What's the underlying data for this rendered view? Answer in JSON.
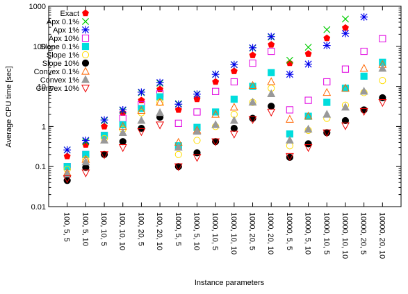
{
  "chart_data": {
    "type": "scatter",
    "xlabel": "Instance parameters",
    "ylabel": "Average CPU time [sec]",
    "y_scale": "log",
    "ylim": [
      0.01,
      1000
    ],
    "y_ticks": [
      "0.01",
      "0.1",
      "1",
      "10",
      "100",
      "1000"
    ],
    "grid": false,
    "legend_position": "top-left",
    "categories": [
      "100, 5, 5",
      "100, 5, 10",
      "100, 10, 5",
      "100, 10, 10",
      "100, 20, 5",
      "100, 20, 10",
      "1000, 5, 5",
      "1000, 5, 10",
      "1000, 10, 5",
      "1000, 10, 10",
      "1000, 20, 5",
      "1000, 20, 10",
      "10000, 5, 5",
      "10000, 5, 10",
      "10000, 10, 5",
      "10000, 10, 10",
      "10000, 20, 5",
      "10000, 20, 10"
    ],
    "series": [
      {
        "name": "Exact",
        "marker": "pentagon",
        "color": "#ff0000",
        "values": [
          0.18,
          0.35,
          1.0,
          2.2,
          4.5,
          8.5,
          2.6,
          4.8,
          13,
          24,
          60,
          110,
          38,
          65,
          160,
          290,
          null,
          null
        ]
      },
      {
        "name": "Apx 0.1%",
        "marker": "x",
        "color": "#00cc00",
        "values": [
          0.26,
          0.42,
          1.4,
          2.5,
          7.0,
          12,
          3.7,
          6.5,
          20,
          35,
          90,
          170,
          45,
          95,
          260,
          480,
          null,
          null
        ]
      },
      {
        "name": "Apx 1%",
        "marker": "star",
        "color": "#0000ee",
        "values": [
          0.26,
          0.45,
          1.45,
          2.6,
          7.2,
          12.5,
          3.6,
          6.4,
          20,
          35,
          92,
          175,
          20,
          36,
          105,
          210,
          540,
          null
        ]
      },
      {
        "name": "Apx 10%",
        "marker": "square-open",
        "color": "#e000e0",
        "values": [
          0.1,
          0.2,
          0.6,
          1.6,
          3.5,
          6.5,
          1.2,
          2.3,
          7.5,
          13,
          38,
          75,
          2.6,
          4.5,
          13,
          27,
          75,
          155
        ]
      },
      {
        "name": "Slope 0.1%",
        "marker": "square",
        "color": "#00dddd",
        "values": [
          0.1,
          0.2,
          0.6,
          1.1,
          2.8,
          5.5,
          0.33,
          0.95,
          2.3,
          4.8,
          10,
          22,
          0.65,
          1.8,
          4.0,
          9,
          18,
          40
        ]
      },
      {
        "name": "Slope 1%",
        "marker": "circle-open",
        "color": "#ffdd00",
        "values": [
          0.085,
          0.15,
          0.5,
          0.85,
          2.2,
          4.0,
          0.2,
          0.45,
          1.0,
          2.0,
          4.0,
          9.0,
          0.33,
          0.8,
          1.6,
          3.4,
          7.0,
          14
        ]
      },
      {
        "name": "Slope 10%",
        "marker": "circle",
        "color": "#000000",
        "values": [
          0.045,
          0.095,
          0.2,
          0.42,
          0.9,
          1.7,
          0.1,
          0.22,
          0.42,
          0.9,
          1.6,
          3.2,
          0.17,
          0.37,
          0.7,
          1.4,
          2.6,
          5.2
        ]
      },
      {
        "name": "Convex 0.1%",
        "marker": "triangle-open",
        "color": "#ff6600",
        "values": [
          0.07,
          0.15,
          0.45,
          1.0,
          2.5,
          4.0,
          0.4,
          0.8,
          2.0,
          3.0,
          10.5,
          13,
          1.5,
          1.8,
          7.0,
          9.0,
          28,
          35
        ]
      },
      {
        "name": "Convex 1%",
        "marker": "triangle",
        "color": "#999999",
        "values": [
          0.065,
          0.13,
          0.45,
          0.7,
          1.4,
          2.2,
          0.3,
          0.75,
          1.1,
          1.4,
          4.0,
          6.5,
          0.45,
          0.85,
          2.0,
          3.0,
          7.5,
          28
        ]
      },
      {
        "name": "Convex 10%",
        "marker": "triangle-down-open",
        "color": "#ee0000",
        "values": [
          0.05,
          0.07,
          0.2,
          0.3,
          0.75,
          1.1,
          0.1,
          0.17,
          0.42,
          0.65,
          1.5,
          2.3,
          0.18,
          0.3,
          0.7,
          1.05,
          2.4,
          4.0
        ]
      }
    ]
  }
}
